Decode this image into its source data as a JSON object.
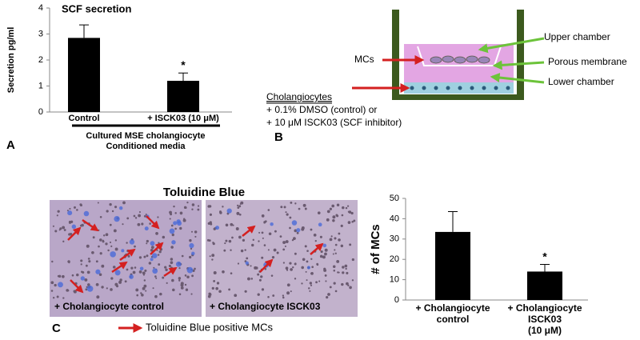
{
  "chart_data": [
    {
      "type": "bar",
      "title": "SCF secretion",
      "y_label": "Secretion pg/ml",
      "categories": [
        "Control",
        "+ ISCK03 (10 μM)"
      ],
      "values": [
        2.85,
        1.2
      ],
      "errors": [
        0.5,
        0.3
      ],
      "significance_marker": "*",
      "x_label": [
        "Cultured MSE cholangiocyte",
        "Conditioned media"
      ],
      "ylim": [
        0,
        4
      ],
      "yticks": [
        0,
        1,
        2,
        3,
        4
      ],
      "color": "#000000",
      "panel": "A"
    },
    {
      "type": "bar",
      "y_label": "# of MCs",
      "categories": [
        [
          "+ Cholangiocyte",
          "control"
        ],
        [
          "+ Cholangiocyte",
          "ISCK03",
          "(10 μM)"
        ]
      ],
      "values": [
        33.5,
        14
      ],
      "errors": [
        10,
        3.5
      ],
      "significance_marker": "*",
      "ylim": [
        0,
        50
      ],
      "yticks": [
        0,
        10,
        20,
        30,
        40,
        50
      ],
      "color": "#000000"
    }
  ],
  "diagram": {
    "panel": "B",
    "upper": "Upper chamber",
    "membrane": "Porous membrane",
    "lower": "Lower chamber",
    "mcs": "MCs",
    "cells": "Cholangiocytes",
    "treatment": [
      "+ 0.1% DMSO (control) or",
      "+ 10 μM ISCK03 (SCF inhibitor)"
    ]
  },
  "micrographs": {
    "panel": "C",
    "title": "Toluidine Blue",
    "left": "+ Cholangiocyte control",
    "right": "+ Cholangiocyte ISCK03",
    "legend": "Toluidine Blue positive MCs"
  }
}
